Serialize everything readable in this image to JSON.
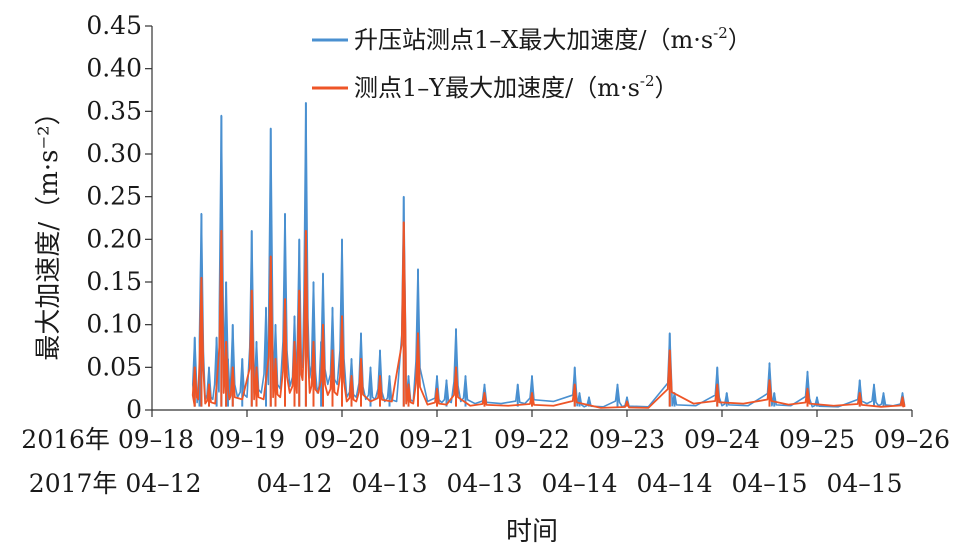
{
  "chart_data": {
    "type": "line",
    "title": "",
    "ylabel": "最大加速度/（m·s⁻²）",
    "xlabel": "时间",
    "ylim": [
      0,
      0.45
    ],
    "xlim": [
      0,
      8
    ],
    "ytick_labels": [
      "0",
      "0.05",
      "0.10",
      "0.15",
      "0.20",
      "0.25",
      "0.30",
      "0.35",
      "0.40",
      "0.45"
    ],
    "yticks": [
      0,
      0.05,
      0.1,
      0.15,
      0.2,
      0.25,
      0.3,
      0.35,
      0.4,
      0.45
    ],
    "xtick_labels_row1": [
      "2016年 09–18",
      "09–19",
      "09–20",
      "09–21",
      "09–22",
      "09–23",
      "09–24",
      "09–25",
      "09–26"
    ],
    "xtick_labels_row2": [
      "2017年 04–12",
      "04–12",
      "04–13",
      "04–13",
      "04–14",
      "04–14",
      "04–15",
      "04–15"
    ],
    "grid": false,
    "legend": {
      "placement": "top-right",
      "entries": [
        {
          "label": "升压站测点1–X最大加速度/（m·s",
          "sup": "-2",
          "close": "）",
          "color": "#4a90d0"
        },
        {
          "label": "测点1–Y最大加速度/（m·s",
          "sup": "-2",
          "close": "）",
          "color": "#ee5527"
        }
      ]
    },
    "series": [
      {
        "name": "升压站测点1–X最大加速度/（m·s⁻²）",
        "color": "#4a90d0",
        "x": [
          0.45,
          0.5,
          0.52,
          0.6,
          0.68,
          0.73,
          0.78,
          0.8,
          0.85,
          0.95,
          1.05,
          1.1,
          1.2,
          1.25,
          1.3,
          1.4,
          1.5,
          1.55,
          1.62,
          1.7,
          1.78,
          1.8,
          1.9,
          2.0,
          2.1,
          2.2,
          2.3,
          2.4,
          2.5,
          2.65,
          2.7,
          2.8,
          3.0,
          3.1,
          3.2,
          3.3,
          3.5,
          3.85,
          4.0,
          4.45,
          4.5,
          4.6,
          4.9,
          5.0,
          5.45,
          5.5,
          5.95,
          6.05,
          6.5,
          6.55,
          6.9,
          7.0,
          7.45,
          7.6,
          7.7,
          7.9
        ],
        "y": [
          0.085,
          0.035,
          0.23,
          0.05,
          0.085,
          0.345,
          0.15,
          0.06,
          0.1,
          0.06,
          0.21,
          0.08,
          0.12,
          0.33,
          0.1,
          0.23,
          0.11,
          0.2,
          0.36,
          0.15,
          0.08,
          0.16,
          0.12,
          0.2,
          0.06,
          0.09,
          0.05,
          0.07,
          0.04,
          0.25,
          0.04,
          0.165,
          0.04,
          0.035,
          0.095,
          0.04,
          0.03,
          0.03,
          0.04,
          0.05,
          0.02,
          0.015,
          0.03,
          0.015,
          0.09,
          0.02,
          0.05,
          0.02,
          0.055,
          0.02,
          0.045,
          0.015,
          0.035,
          0.03,
          0.02,
          0.02
        ]
      },
      {
        "name": "测点1–Y最大加速度/（m·s⁻²）",
        "color": "#ee5527",
        "x": [
          0.45,
          0.52,
          0.6,
          0.73,
          0.78,
          0.85,
          1.05,
          1.1,
          1.25,
          1.3,
          1.4,
          1.5,
          1.55,
          1.62,
          1.7,
          1.8,
          1.9,
          2.0,
          2.1,
          2.2,
          2.4,
          2.65,
          2.7,
          2.8,
          3.0,
          3.2,
          3.5,
          4.0,
          4.45,
          5.0,
          5.45,
          5.95,
          6.5,
          6.9,
          7.45,
          7.9
        ],
        "y": [
          0.05,
          0.155,
          0.03,
          0.21,
          0.08,
          0.05,
          0.14,
          0.05,
          0.18,
          0.06,
          0.13,
          0.08,
          0.14,
          0.21,
          0.08,
          0.1,
          0.07,
          0.11,
          0.04,
          0.06,
          0.04,
          0.22,
          0.03,
          0.09,
          0.025,
          0.05,
          0.02,
          0.02,
          0.03,
          0.01,
          0.07,
          0.03,
          0.035,
          0.025,
          0.02,
          0.015
        ]
      }
    ]
  }
}
